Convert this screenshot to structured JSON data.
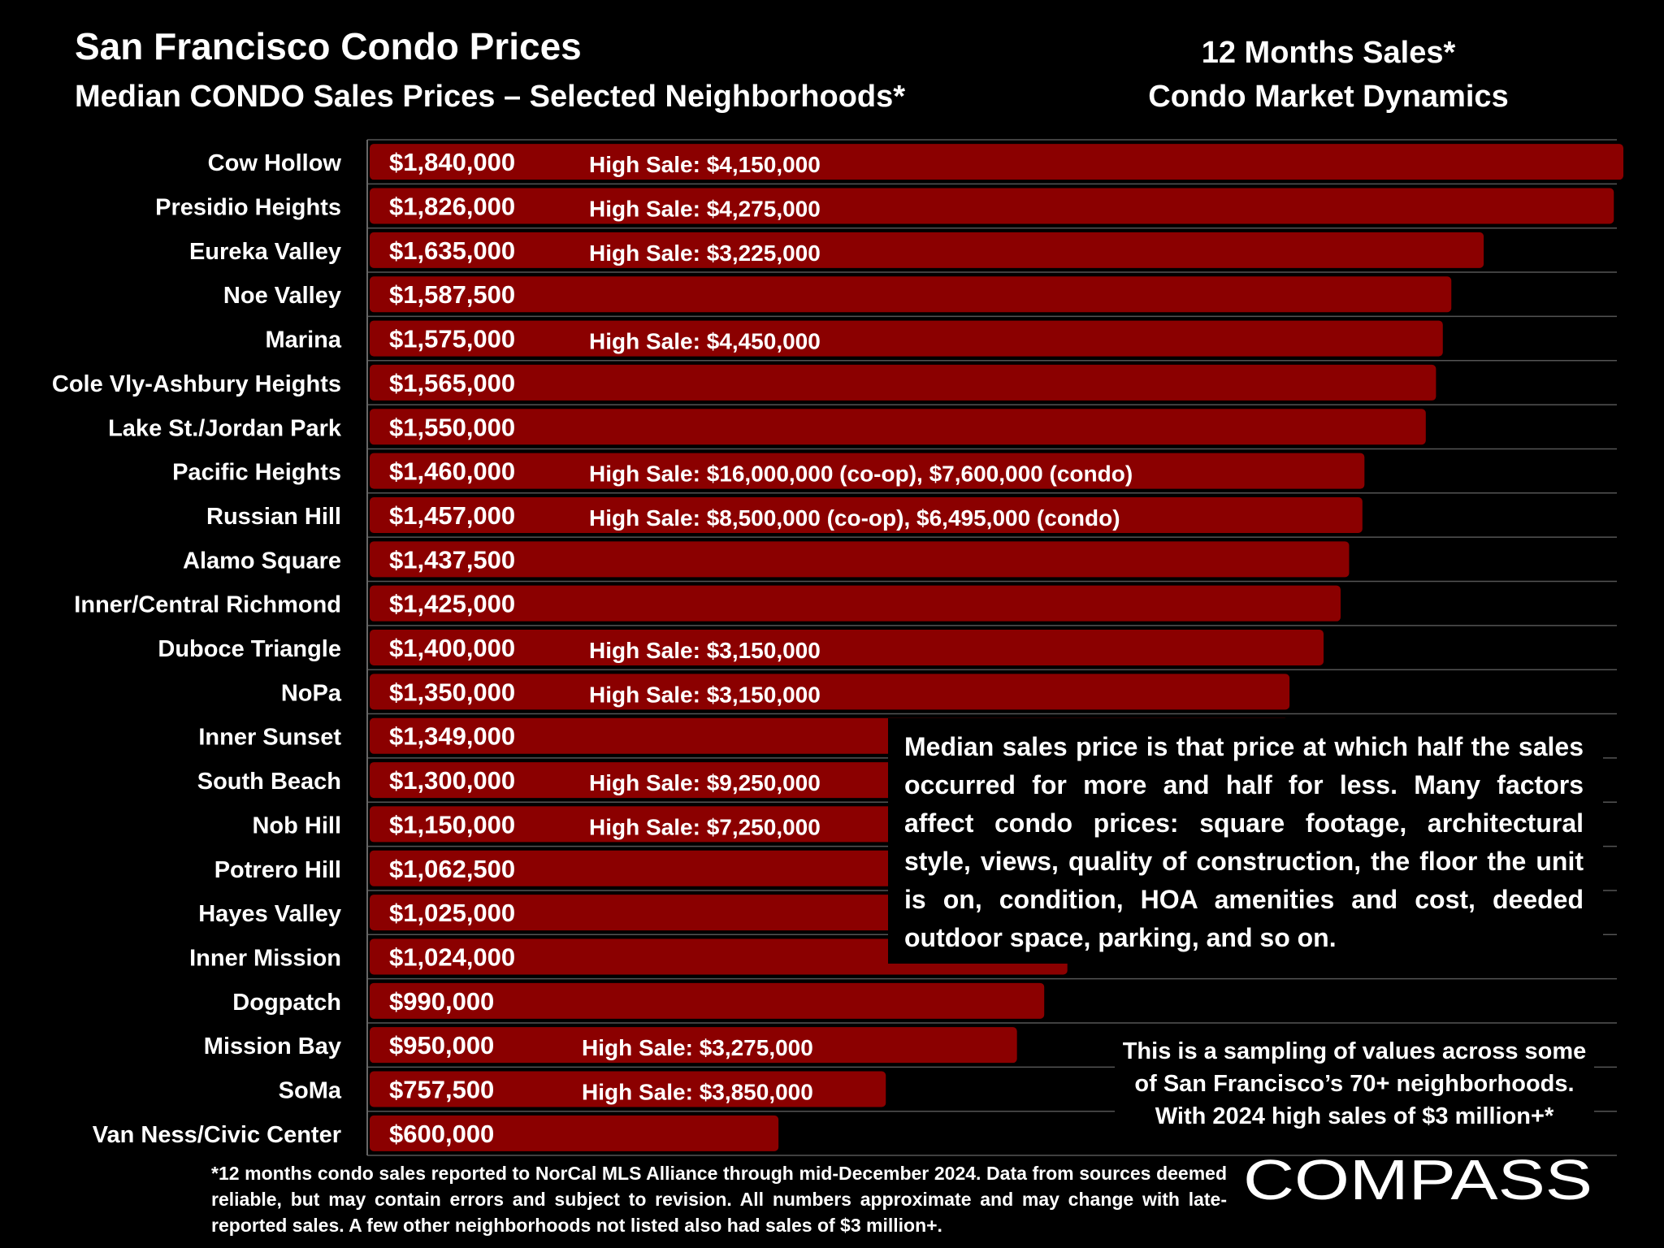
{
  "header": {
    "title": "San Francisco Condo Prices",
    "subtitle": "Median CONDO Sales Prices – Selected Neighborhoods*",
    "right_line1": "12 Months Sales*",
    "right_line2": "Condo Market Dynamics"
  },
  "chart_data": {
    "type": "bar",
    "orientation": "horizontal",
    "title": "San Francisco Condo Prices",
    "subtitle": "Median CONDO Sales Prices – Selected Neighborhoods*",
    "grid": true,
    "bar_color": "#8B0000",
    "categories": [
      "Cow Hollow",
      "Presidio Heights",
      "Eureka Valley",
      "Noe Valley",
      "Marina",
      "Cole Vly-Ashbury Heights",
      "Lake St./Jordan Park",
      "Pacific Heights",
      "Russian Hill",
      "Alamo Square",
      "Inner/Central Richmond",
      "Duboce Triangle",
      "NoPa",
      "Inner Sunset",
      "South Beach",
      "Nob Hill",
      "Potrero Hill",
      "Hayes Valley",
      "Inner Mission",
      "Dogpatch",
      "Mission Bay",
      "SoMa",
      "Van Ness/Civic Center"
    ],
    "values": [
      1840000,
      1826000,
      1635000,
      1587500,
      1575000,
      1565000,
      1550000,
      1460000,
      1457000,
      1437500,
      1425000,
      1400000,
      1350000,
      1349000,
      1300000,
      1150000,
      1062500,
      1025000,
      1024000,
      990000,
      950000,
      757500,
      600000
    ],
    "value_labels": [
      "$1,840,000",
      "$1,826,000",
      "$1,635,000",
      "$1,587,500",
      "$1,575,000",
      "$1,565,000",
      "$1,550,000",
      "$1,460,000",
      "$1,457,000",
      "$1,437,500",
      "$1,425,000",
      "$1,400,000",
      "$1,350,000",
      "$1,349,000",
      "$1,300,000",
      "$1,150,000",
      "$1,062,500",
      "$1,025,000",
      "$1,024,000",
      "$990,000",
      "$950,000",
      "$757,500",
      "$600,000"
    ],
    "annotations": [
      {
        "category": "Cow Hollow",
        "text": "High Sale:  $4,150,000"
      },
      {
        "category": "Presidio Heights",
        "text": "High Sale:  $4,275,000"
      },
      {
        "category": "Eureka Valley",
        "text": "High Sale:  $3,225,000"
      },
      {
        "category": "Marina",
        "text": "High Sale:  $4,450,000"
      },
      {
        "category": "Pacific Heights",
        "text": "High Sale:  $16,000,000 (co-op), $7,600,000 (condo)"
      },
      {
        "category": "Russian Hill",
        "text": "High Sale:  $8,500,000 (co-op), $6,495,000 (condo)"
      },
      {
        "category": "Duboce Triangle",
        "text": "High Sale:  $3,150,000"
      },
      {
        "category": "NoPa",
        "text": "High Sale:  $3,150,000"
      },
      {
        "category": "South Beach",
        "text": "High Sale:  $9,250,000"
      },
      {
        "category": "Nob Hill",
        "text": "High Sale:  $7,250,000"
      },
      {
        "category": "Mission Bay",
        "text": "High Sale:  $3,275,000"
      },
      {
        "category": "SoMa",
        "text": "High Sale:  $3,850,000"
      }
    ]
  },
  "note": "Median sales price is that price at which half the sales occurred for more and half for less. Many factors affect condo prices: square footage, architectural style, views, quality of construction, the floor the unit is on, condition, HOA amenities and cost, deeded outdoor space, parking, and so on.",
  "sample_note": {
    "line1": "This is a sampling of values across some",
    "line2": "of San Francisco’s 70+ neighborhoods.",
    "line3": "With 2024 high sales of $3 million+*"
  },
  "footnote": "*12 months condo sales reported to NorCal MLS Alliance through mid-December 2024. Data from sources deemed reliable, but may contain errors and subject to revision. All numbers approximate and may change with late-reported sales. A few other neighborhoods not listed also had sales of $3 million+.",
  "logo_text": "COMPASS"
}
